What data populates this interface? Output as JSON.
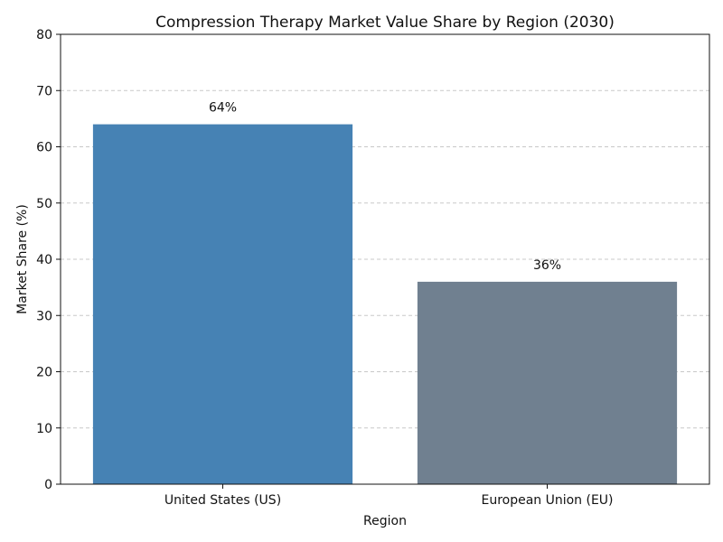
{
  "chart_data": {
    "type": "bar",
    "title": "Compression Therapy Market Value Share by Region (2030)",
    "xlabel": "Region",
    "ylabel": "Market Share (%)",
    "categories": [
      "United States (US)",
      "European Union (EU)"
    ],
    "values": [
      64,
      36
    ],
    "data_labels": [
      "64%",
      "36%"
    ],
    "colors": [
      "#4682b4",
      "#708090"
    ],
    "ylim": [
      0,
      80
    ],
    "yticks": [
      0,
      10,
      20,
      30,
      40,
      50,
      60,
      70,
      80
    ],
    "grid": "y-dashed"
  }
}
